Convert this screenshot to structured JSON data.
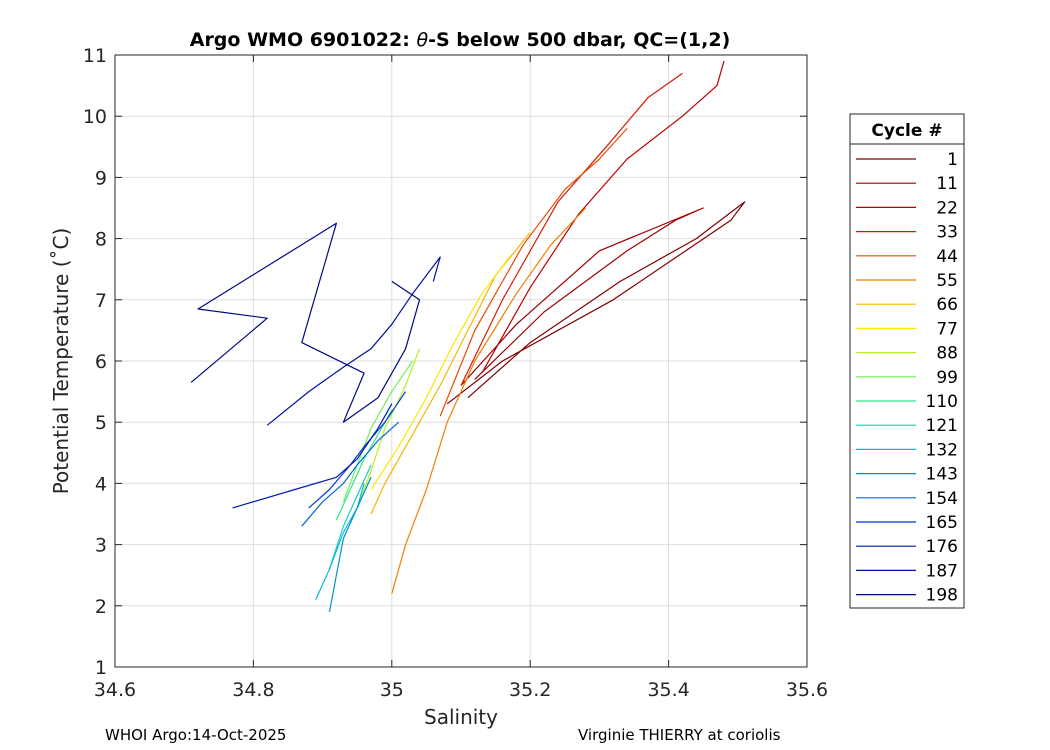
{
  "chart_data": {
    "type": "line",
    "title": "Argo WMO 6901022: θ-S below 500 dbar,  QC=(1,2)",
    "title_prefix": "Argo WMO 6901022: ",
    "title_theta": "θ",
    "title_suffix": "-S below 500 dbar,  QC=(1,2)",
    "xlabel": "Salinity",
    "ylabel": "Potential Temperature (˚C)",
    "xlim": [
      34.6,
      35.6
    ],
    "ylim": [
      1,
      11
    ],
    "x_ticks": [
      34.6,
      34.8,
      35.0,
      35.2,
      35.4,
      35.6
    ],
    "x_tick_labels": [
      "34.6",
      "34.8",
      "35",
      "35.2",
      "35.4",
      "35.6"
    ],
    "y_ticks": [
      1,
      2,
      3,
      4,
      5,
      6,
      7,
      8,
      9,
      10,
      11
    ],
    "y_tick_labels": [
      "1",
      "2",
      "3",
      "4",
      "5",
      "6",
      "7",
      "8",
      "9",
      "10",
      "11"
    ],
    "grid": true,
    "legend": {
      "title": "Cycle #",
      "placement": "outside-right",
      "entries": [
        {
          "label": "1",
          "color": "#800000"
        },
        {
          "label": "11",
          "color": "#9c0000"
        },
        {
          "label": "22",
          "color": "#bb0000"
        },
        {
          "label": "33",
          "color": "#d81a00"
        },
        {
          "label": "44",
          "color": "#ec4a00"
        },
        {
          "label": "55",
          "color": "#f57c00"
        },
        {
          "label": "66",
          "color": "#f6b500"
        },
        {
          "label": "77",
          "color": "#fbe800"
        },
        {
          "label": "88",
          "color": "#b4f020"
        },
        {
          "label": "99",
          "color": "#6df256"
        },
        {
          "label": "110",
          "color": "#2ee885"
        },
        {
          "label": "121",
          "color": "#10d4b8"
        },
        {
          "label": "132",
          "color": "#0cb6e4"
        },
        {
          "label": "143",
          "color": "#0091c8"
        },
        {
          "label": "154",
          "color": "#006ad8"
        },
        {
          "label": "165",
          "color": "#0038d4"
        },
        {
          "label": "176",
          "color": "#001ab4"
        },
        {
          "label": "187",
          "color": "#0010a0"
        },
        {
          "label": "198",
          "color": "#000a80"
        }
      ]
    },
    "series": [
      {
        "name": "1",
        "color": "#800000",
        "x": [
          35.11,
          35.2,
          35.33,
          35.44,
          35.51,
          35.49,
          35.32,
          35.16,
          35.08
        ],
        "y": [
          5.4,
          6.3,
          7.3,
          8.0,
          8.6,
          8.3,
          7.0,
          6.0,
          5.3
        ]
      },
      {
        "name": "11",
        "color": "#9c0000",
        "x": [
          35.12,
          35.22,
          35.34,
          35.41,
          35.45,
          35.3,
          35.18,
          35.1
        ],
        "y": [
          5.7,
          6.8,
          7.8,
          8.3,
          8.5,
          7.8,
          6.6,
          5.6
        ]
      },
      {
        "name": "22",
        "color": "#bb0000",
        "x": [
          35.13,
          35.2,
          35.27,
          35.34,
          35.42,
          35.47,
          35.48
        ],
        "y": [
          5.8,
          7.2,
          8.4,
          9.3,
          10.0,
          10.5,
          10.9
        ]
      },
      {
        "name": "33",
        "color": "#d81a00",
        "x": [
          35.1,
          35.16,
          35.24,
          35.31,
          35.37,
          35.42
        ],
        "y": [
          5.6,
          7.0,
          8.6,
          9.5,
          10.3,
          10.7
        ]
      },
      {
        "name": "44",
        "color": "#ec4a00",
        "x": [
          35.07,
          35.12,
          35.19,
          35.25,
          35.3,
          35.34
        ],
        "y": [
          5.1,
          6.5,
          7.9,
          8.8,
          9.3,
          9.8
        ]
      },
      {
        "name": "55",
        "color": "#f57c00",
        "x": [
          35.0,
          35.02,
          35.05,
          35.08,
          35.12,
          35.18,
          35.23,
          35.28
        ],
        "y": [
          2.2,
          3.0,
          3.9,
          5.0,
          6.0,
          7.1,
          7.9,
          8.5
        ]
      },
      {
        "name": "66",
        "color": "#f6b500",
        "x": [
          34.97,
          34.99,
          35.03,
          35.07,
          35.11,
          35.15,
          35.2
        ],
        "y": [
          3.5,
          4.0,
          4.8,
          5.6,
          6.5,
          7.4,
          8.1
        ]
      },
      {
        "name": "77",
        "color": "#fbe800",
        "x": [
          34.97,
          35.01,
          35.05,
          35.09,
          35.13,
          35.17
        ],
        "y": [
          3.9,
          4.6,
          5.4,
          6.3,
          7.1,
          7.7
        ]
      },
      {
        "name": "88",
        "color": "#b4f020",
        "x": [
          34.95,
          34.97,
          34.99,
          35.02,
          35.04
        ],
        "y": [
          3.6,
          4.2,
          4.9,
          5.6,
          6.2
        ]
      },
      {
        "name": "99",
        "color": "#6df256",
        "x": [
          34.93,
          34.95,
          34.97,
          35.0,
          35.03
        ],
        "y": [
          3.7,
          4.3,
          4.9,
          5.5,
          6.0
        ]
      },
      {
        "name": "110",
        "color": "#2ee885",
        "x": [
          34.92,
          34.94,
          34.96,
          34.98,
          35.0
        ],
        "y": [
          3.4,
          3.9,
          4.4,
          4.8,
          5.2
        ]
      },
      {
        "name": "121",
        "color": "#10d4b8",
        "x": [
          34.91,
          34.93,
          34.95,
          34.97
        ],
        "y": [
          2.6,
          3.3,
          3.8,
          4.3
        ]
      },
      {
        "name": "132",
        "color": "#0cb6e4",
        "x": [
          34.89,
          34.91,
          34.93,
          34.95,
          34.96
        ],
        "y": [
          2.1,
          2.6,
          3.2,
          3.6,
          4.0
        ]
      },
      {
        "name": "143",
        "color": "#0091c8",
        "x": [
          34.91,
          34.92,
          34.93,
          34.95,
          34.97
        ],
        "y": [
          1.9,
          2.5,
          3.1,
          3.6,
          4.1
        ]
      },
      {
        "name": "154",
        "color": "#006ad8",
        "x": [
          34.87,
          34.9,
          34.93,
          34.95,
          34.98,
          35.01
        ],
        "y": [
          3.3,
          3.7,
          4.0,
          4.3,
          4.7,
          5.0
        ]
      },
      {
        "name": "165",
        "color": "#0038d4",
        "x": [
          34.88,
          34.91,
          34.94,
          34.96,
          34.99,
          35.02
        ],
        "y": [
          3.6,
          3.9,
          4.3,
          4.6,
          5.0,
          5.5
        ]
      },
      {
        "name": "176",
        "color": "#001ab4",
        "x": [
          34.77,
          34.86,
          34.92,
          34.95,
          34.98,
          35.0
        ],
        "y": [
          3.6,
          3.9,
          4.1,
          4.4,
          4.9,
          5.3
        ]
      },
      {
        "name": "187",
        "color": "#0010a0",
        "x": [
          34.82,
          34.88,
          34.93,
          34.97,
          35.0,
          35.03,
          35.07,
          35.06
        ],
        "y": [
          4.95,
          5.5,
          5.9,
          6.2,
          6.6,
          7.1,
          7.7,
          7.3
        ]
      },
      {
        "name": "198",
        "color": "#000a80",
        "x": [
          34.71,
          34.82,
          34.72,
          34.92,
          34.87,
          34.96,
          34.93,
          34.98,
          35.02,
          35.04,
          35.0
        ],
        "y": [
          5.65,
          6.7,
          6.85,
          8.25,
          6.3,
          5.8,
          5.0,
          5.4,
          6.2,
          7.0,
          7.3
        ]
      }
    ]
  },
  "footer": {
    "left": "WHOI Argo:14-Oct-2025",
    "right": "Virginie THIERRY at coriolis"
  }
}
